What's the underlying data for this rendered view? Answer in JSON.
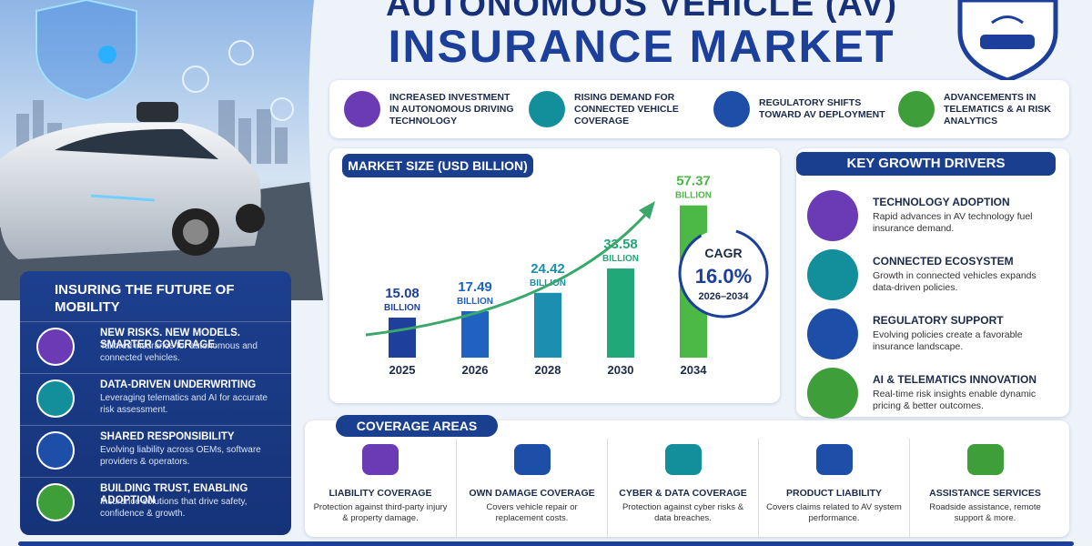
{
  "header": {
    "title_line1": "AUTONOMOUS VEHICLE (AV)",
    "title_line2": "INSURANCE MARKET"
  },
  "highlights": [
    "INCREASED INVESTMENT IN AUTONOMOUS DRIVING TECHNOLOGY",
    "RISING DEMAND FOR CONNECTED VEHICLE COVERAGE",
    "REGULATORY SHIFTS TOWARD AV DEPLOYMENT",
    "ADVANCEMENTS IN TELEMATICS & AI RISK ANALYTICS"
  ],
  "chart_data": {
    "type": "bar",
    "title": "MARKET SIZE (USD BILLION)",
    "categories": [
      "2025",
      "2026",
      "2028",
      "2030",
      "2034"
    ],
    "values": [
      15.08,
      17.49,
      24.42,
      33.58,
      57.37
    ],
    "value_unit": "BILLION",
    "colors": [
      "#1f3f9c",
      "#1f62c0",
      "#1c8fb0",
      "#21a878",
      "#4cb845"
    ],
    "ylim": [
      0,
      60
    ],
    "annotation": {
      "label": "CAGR",
      "value": "16.0%",
      "period": "2026–2034"
    }
  },
  "growth_drivers": {
    "title": "KEY GROWTH DRIVERS",
    "items": [
      {
        "title": "TECHNOLOGY ADOPTION",
        "text": "Rapid advances in AV technology fuel insurance demand."
      },
      {
        "title": "CONNECTED ECOSYSTEM",
        "text": "Growth in connected vehicles expands data-driven policies."
      },
      {
        "title": "REGULATORY SUPPORT",
        "text": "Evolving policies create a favorable insurance landscape."
      },
      {
        "title": "AI & TELEMATICS INNOVATION",
        "text": "Real-time risk insights enable dynamic pricing & better outcomes."
      }
    ]
  },
  "mobility": {
    "title": "INSURING THE FUTURE OF MOBILITY",
    "items": [
      {
        "title": "NEW RISKS. NEW MODELS. SMARTER COVERAGE.",
        "text": "Tailored insurance for autonomous and connected vehicles."
      },
      {
        "title": "DATA-DRIVEN UNDERWRITING",
        "text": "Leveraging telematics and AI for accurate risk assessment."
      },
      {
        "title": "SHARED RESPONSIBILITY",
        "text": "Evolving liability across OEMs, software providers & operators."
      },
      {
        "title": "BUILDING TRUST, ENABLING ADOPTION",
        "text": "Insurance solutions that drive safety, confidence & growth."
      }
    ]
  },
  "coverage": {
    "title": "COVERAGE AREAS",
    "items": [
      {
        "title": "LIABILITY COVERAGE",
        "text": "Protection against third-party injury & property damage."
      },
      {
        "title": "OWN DAMAGE COVERAGE",
        "text": "Covers vehicle repair or replacement costs."
      },
      {
        "title": "CYBER & DATA COVERAGE",
        "text": "Protection against cyber risks & data breaches."
      },
      {
        "title": "PRODUCT LIABILITY",
        "text": "Covers claims related to AV system performance."
      },
      {
        "title": "ASSISTANCE SERVICES",
        "text": "Roadside assistance, remote support & more."
      }
    ]
  }
}
